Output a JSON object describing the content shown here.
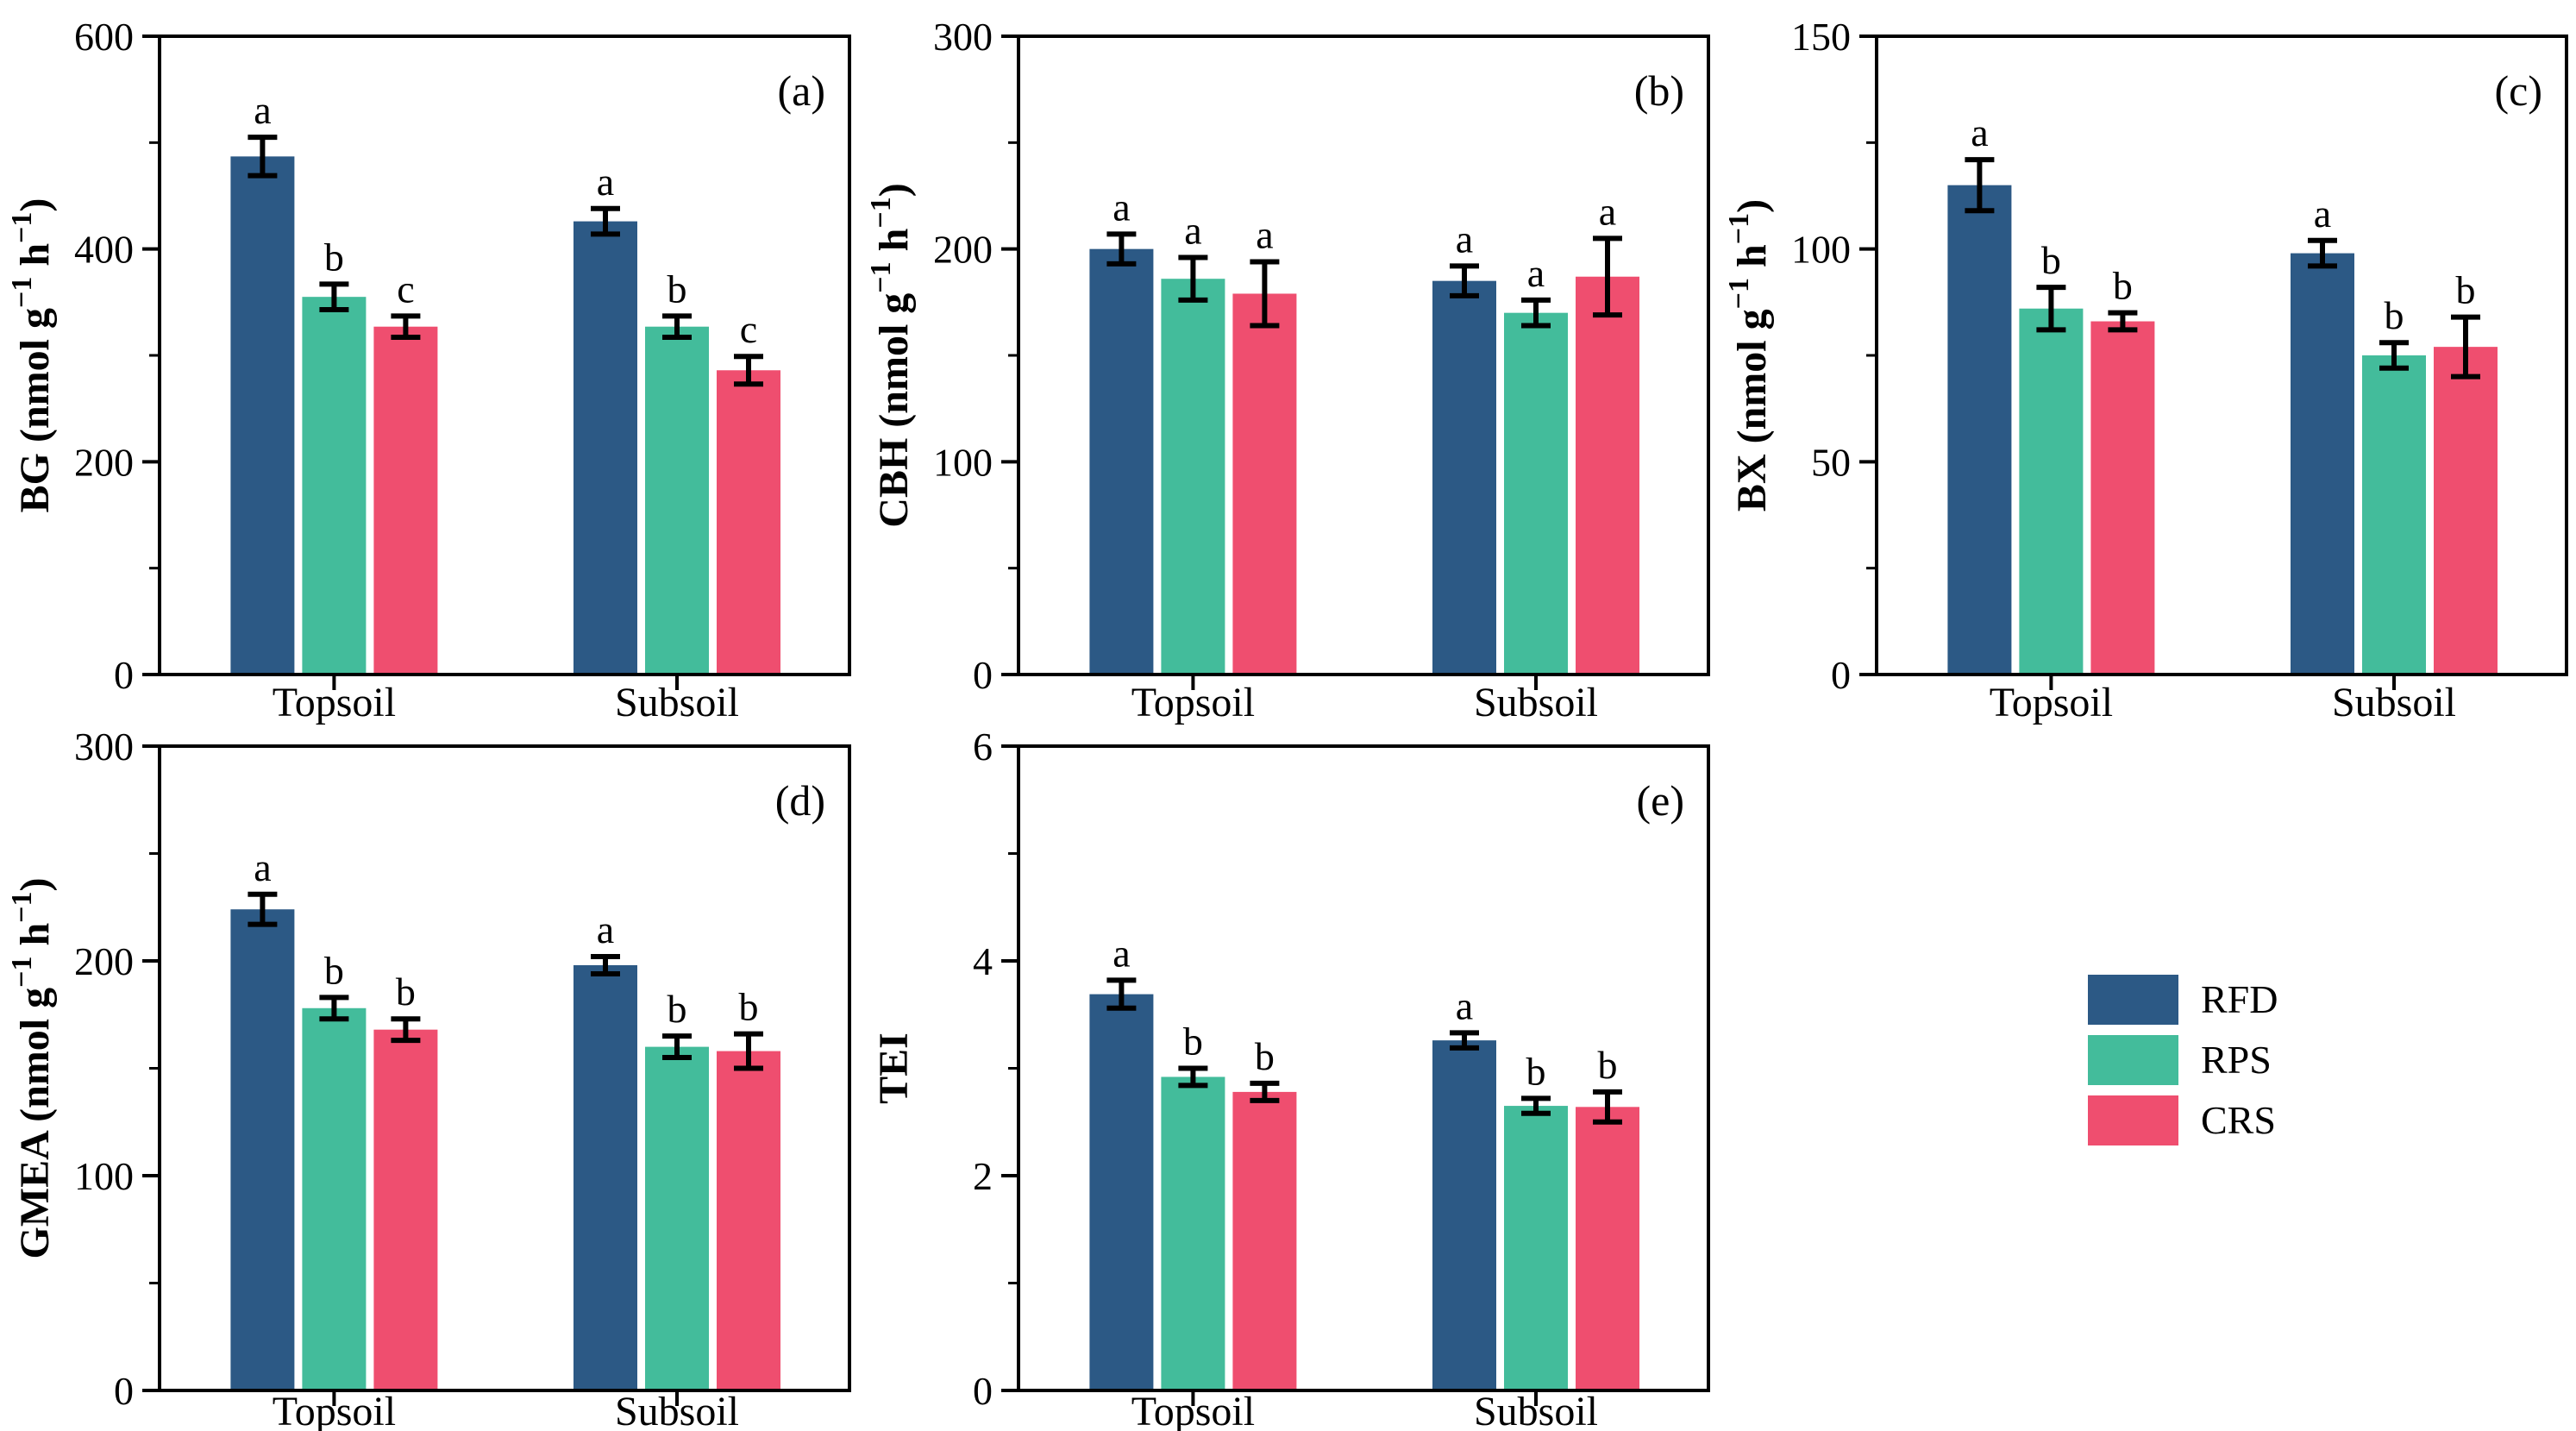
{
  "legend": {
    "entries": [
      {
        "label": "RFD",
        "color": "#2C5985"
      },
      {
        "label": "RPS",
        "color": "#43BC9B"
      },
      {
        "label": "CRS",
        "color": "#EF4E6F"
      }
    ]
  },
  "chart_data": [
    {
      "panel_label": "(a)",
      "type": "bar",
      "ylabel": "BG (nmol g⁻¹ h⁻¹)",
      "ylim": [
        0,
        600
      ],
      "yticks": [
        0,
        200,
        400,
        600
      ],
      "yticks_minor": [
        100,
        300,
        500
      ],
      "categories": [
        "Topsoil",
        "Subsoil"
      ],
      "series": [
        {
          "name": "RFD",
          "color": "#2C5985",
          "values": [
            487,
            426
          ],
          "errors": [
            18,
            12
          ],
          "sig_letters": [
            "a",
            "a"
          ]
        },
        {
          "name": "RPS",
          "color": "#43BC9B",
          "values": [
            355,
            327
          ],
          "errors": [
            12,
            10
          ],
          "sig_letters": [
            "b",
            "b"
          ]
        },
        {
          "name": "CRS",
          "color": "#EF4E6F",
          "values": [
            327,
            286
          ],
          "errors": [
            10,
            13
          ],
          "sig_letters": [
            "c",
            "c"
          ]
        }
      ]
    },
    {
      "panel_label": "(b)",
      "type": "bar",
      "ylabel": "CBH (nmol g⁻¹ h⁻¹)",
      "ylim": [
        0,
        300
      ],
      "yticks": [
        0,
        100,
        200,
        300
      ],
      "yticks_minor": [
        50,
        150,
        250
      ],
      "categories": [
        "Topsoil",
        "Subsoil"
      ],
      "series": [
        {
          "name": "RFD",
          "color": "#2C5985",
          "values": [
            200,
            185
          ],
          "errors": [
            7,
            7
          ],
          "sig_letters": [
            "a",
            "a"
          ]
        },
        {
          "name": "RPS",
          "color": "#43BC9B",
          "values": [
            186,
            170
          ],
          "errors": [
            10,
            6
          ],
          "sig_letters": [
            "a",
            "a"
          ]
        },
        {
          "name": "CRS",
          "color": "#EF4E6F",
          "values": [
            179,
            187
          ],
          "errors": [
            15,
            18
          ],
          "sig_letters": [
            "a",
            "a"
          ]
        }
      ]
    },
    {
      "panel_label": "(c)",
      "type": "bar",
      "ylabel": "BX (nmol g⁻¹ h⁻¹)",
      "ylim": [
        0,
        150
      ],
      "yticks": [
        0,
        50,
        100,
        150
      ],
      "yticks_minor": [
        25,
        75,
        125
      ],
      "categories": [
        "Topsoil",
        "Subsoil"
      ],
      "series": [
        {
          "name": "RFD",
          "color": "#2C5985",
          "values": [
            115,
            99
          ],
          "errors": [
            6,
            3
          ],
          "sig_letters": [
            "a",
            "a"
          ]
        },
        {
          "name": "RPS",
          "color": "#43BC9B",
          "values": [
            86,
            75
          ],
          "errors": [
            5,
            3
          ],
          "sig_letters": [
            "b",
            "b"
          ]
        },
        {
          "name": "CRS",
          "color": "#EF4E6F",
          "values": [
            83,
            77
          ],
          "errors": [
            2,
            7
          ],
          "sig_letters": [
            "b",
            "b"
          ]
        }
      ]
    },
    {
      "panel_label": "(d)",
      "type": "bar",
      "ylabel": "GMEA (nmol g⁻¹ h⁻¹)",
      "ylim": [
        0,
        300
      ],
      "yticks": [
        0,
        100,
        200,
        300
      ],
      "yticks_minor": [
        50,
        150,
        250
      ],
      "categories": [
        "Topsoil",
        "Subsoil"
      ],
      "series": [
        {
          "name": "RFD",
          "color": "#2C5985",
          "values": [
            224,
            198
          ],
          "errors": [
            7,
            4
          ],
          "sig_letters": [
            "a",
            "a"
          ]
        },
        {
          "name": "RPS",
          "color": "#43BC9B",
          "values": [
            178,
            160
          ],
          "errors": [
            5,
            5
          ],
          "sig_letters": [
            "b",
            "b"
          ]
        },
        {
          "name": "CRS",
          "color": "#EF4E6F",
          "values": [
            168,
            158
          ],
          "errors": [
            5,
            8
          ],
          "sig_letters": [
            "b",
            "b"
          ]
        }
      ]
    },
    {
      "panel_label": "(e)",
      "type": "bar",
      "ylabel": "TEI",
      "ylim": [
        0,
        6
      ],
      "yticks": [
        0,
        2,
        4,
        6
      ],
      "yticks_minor": [
        1,
        3,
        5
      ],
      "categories": [
        "Topsoil",
        "Subsoil"
      ],
      "series": [
        {
          "name": "RFD",
          "color": "#2C5985",
          "values": [
            3.69,
            3.26
          ],
          "errors": [
            0.13,
            0.07
          ],
          "sig_letters": [
            "a",
            "a"
          ]
        },
        {
          "name": "RPS",
          "color": "#43BC9B",
          "values": [
            2.92,
            2.65
          ],
          "errors": [
            0.08,
            0.07
          ],
          "sig_letters": [
            "b",
            "b"
          ]
        },
        {
          "name": "CRS",
          "color": "#EF4E6F",
          "values": [
            2.78,
            2.64
          ],
          "errors": [
            0.08,
            0.14
          ],
          "sig_letters": [
            "b",
            "b"
          ]
        }
      ]
    }
  ]
}
